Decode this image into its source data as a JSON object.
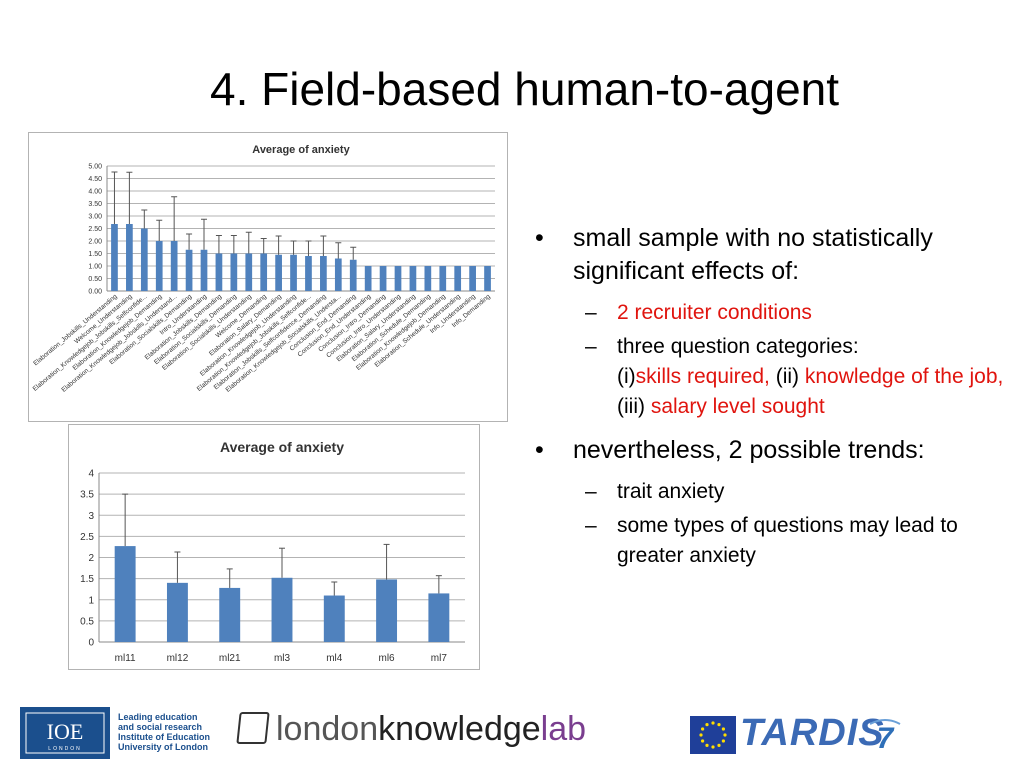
{
  "slide": {
    "title": "4. Field-based human-to-agent"
  },
  "bullets": [
    {
      "text": "small sample with no statistically significant effects of:"
    },
    {
      "text": "2 recruiter conditions"
    },
    {
      "text": "three question categories:"
    },
    {
      "parts": [
        "(i)",
        "skills required,",
        " (ii) ",
        "knowledge of the job,",
        "(iii) ",
        "salary level sought"
      ]
    },
    {
      "text": "nevertheless, 2 possible trends:"
    },
    {
      "text": "trait anxiety"
    },
    {
      "text": "some types of questions may lead to greater anxiety"
    }
  ],
  "markers": {
    "bullet": "•",
    "dash": "–"
  },
  "footer": {
    "ioe_logo": "IOE",
    "ioe_logo_sub": "LONDON",
    "ioe_tagline": "Leading education\nand social research\nInstitute of Education\nUniversity of London",
    "lkl_parts": [
      "london",
      "knowledge",
      "lab"
    ],
    "tardis": "TARDIS",
    "fp7": "7"
  },
  "colors": {
    "bar": "#4f81bd",
    "text_red": "#e0140e",
    "grid": "#b3b3b3",
    "ioe_blue": "#1b4f8d",
    "lkl_gray": "#555555",
    "lkl_purple": "#7a3e8f",
    "eu_blue": "#1f3f99",
    "eu_star": "#ffdd00",
    "tardis_blue": "#3b6ab5"
  },
  "chart_data": [
    {
      "type": "bar",
      "title": "Average of anxiety",
      "ylim": [
        0,
        5
      ],
      "yticks": [
        "0.00",
        "0.50",
        "1.00",
        "1.50",
        "2.00",
        "2.50",
        "3.00",
        "3.50",
        "4.00",
        "4.50",
        "5.00"
      ],
      "grid": true,
      "categories": [
        "Elaboration_Jobskills_Understanding",
        "Welcome_Understanding",
        "Elaboration_Knowledgejob_Jobskills_Selfconfide...",
        "Elaboration_Knowledgejob_Demanding",
        "Elaboration_Knowledgejob_Jobskills_Understand...",
        "Elaboration_Socialskills_Demanding",
        "Intro_Understanding",
        "Elaboration_Jobskills_Demanding",
        "Elaboration_Socialskills_Demanding",
        "Elaboration_Socialskills_Understanding",
        "Welcome_Demanding",
        "Elaboration_Salary_Demanding",
        "Elaboration_Knowledgejob_Understanding",
        "Elaboration_Knowledgejob_Jobskills_Selfconfide...",
        "Elaboration_Jobskills_Selfconfidence_Demanding",
        "Elaboration_Knowledgejob_Socialskills_Understa...",
        "Conclusion_End_Demanding",
        "Conclusion_End_Understanding",
        "Conclusion_Intro_Demanding",
        "Conclusion_Intro_Understanding",
        "Elaboration_Salary_Understanding",
        "Elaboration_Schedule_Demanding",
        "Elaboration_Knowledgejob_Demanding",
        "Elaboration_Schedule_Understanding",
        "Info_Understanding",
        "Info_Demanding"
      ],
      "values": [
        2.68,
        2.68,
        2.5,
        2.0,
        2.0,
        1.65,
        1.65,
        1.5,
        1.5,
        1.5,
        1.5,
        1.45,
        1.45,
        1.4,
        1.4,
        1.3,
        1.25,
        1.0,
        1.0,
        1.0,
        1.0,
        1.0,
        1.0,
        1.0,
        1.0,
        1.0
      ],
      "errors": [
        2.08,
        2.07,
        0.74,
        0.83,
        1.77,
        0.63,
        1.22,
        0.72,
        0.72,
        0.85,
        0.6,
        0.75,
        0.55,
        0.6,
        0.8,
        0.63,
        0.5,
        0,
        0,
        0,
        0,
        0,
        0,
        0,
        0,
        0
      ]
    },
    {
      "type": "bar",
      "title": "Average of anxiety",
      "ylim": [
        0,
        4
      ],
      "yticks": [
        "0",
        "0.5",
        "1",
        "1.5",
        "2",
        "2.5",
        "3",
        "3.5",
        "4"
      ],
      "grid": true,
      "categories": [
        "ml11",
        "ml12",
        "ml21",
        "ml3",
        "ml4",
        "ml6",
        "ml7"
      ],
      "values": [
        2.27,
        1.4,
        1.28,
        1.52,
        1.1,
        1.48,
        1.15
      ],
      "errors": [
        1.23,
        0.73,
        0.45,
        0.7,
        0.32,
        0.83,
        0.42
      ]
    }
  ]
}
